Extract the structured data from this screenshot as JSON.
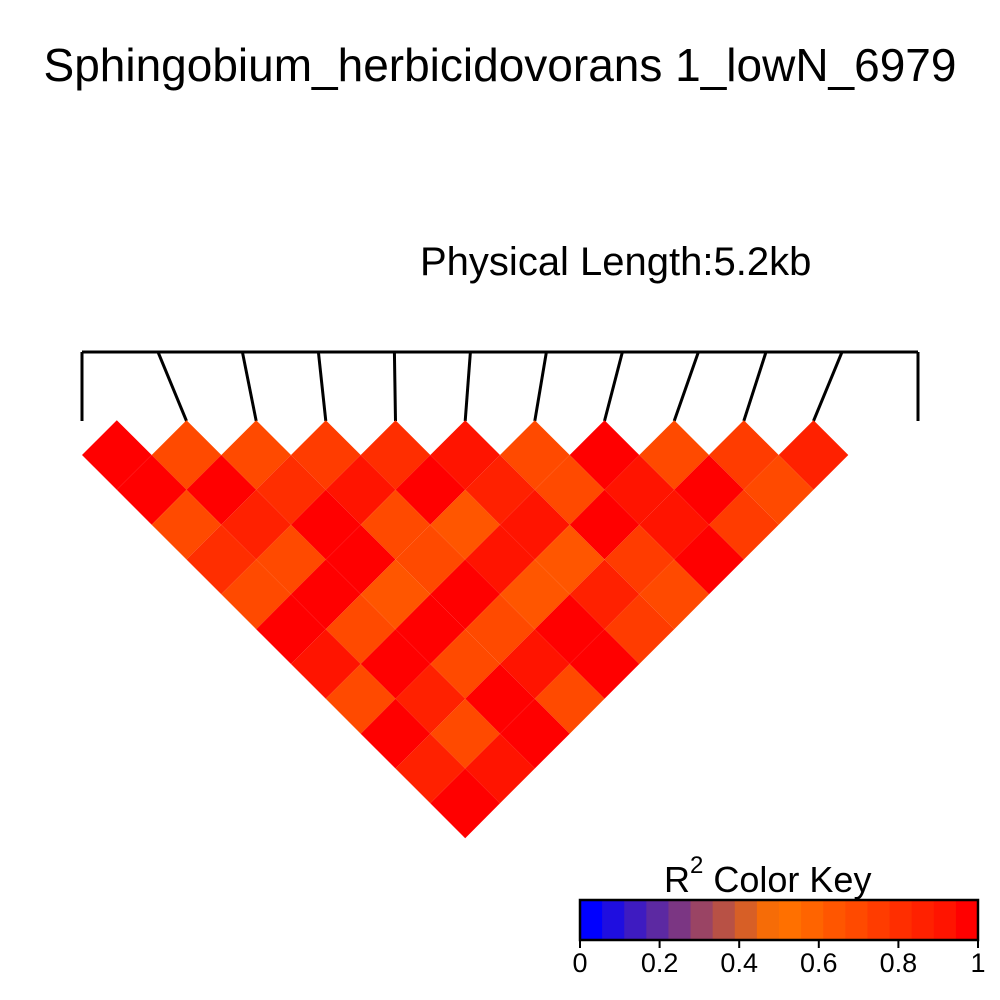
{
  "chart_data": {
    "type": "heatmap",
    "title": "Sphingobium_herbicidovorans 1_lowN_6979",
    "subtitle": "Physical Length:5.2kb",
    "color_key": {
      "title_main": "R",
      "title_sup": "2",
      "title_rest": "Color Key",
      "ticks": [
        "0",
        "0.2",
        "0.4",
        "0.6",
        "0.8",
        "1"
      ],
      "range": [
        0,
        1
      ],
      "colors": [
        "#0000ff",
        "#1f0ee0",
        "#3e1bc1",
        "#5c29a2",
        "#7b3683",
        "#9a4464",
        "#b85145",
        "#d75f26",
        "#f66c07",
        "#ff7000",
        "#ff6400",
        "#ff5600",
        "#ff4a00",
        "#ff3c00",
        "#ff2e00",
        "#ff2100",
        "#ff1400",
        "#ff0000"
      ]
    },
    "n_markers": 12,
    "marker_positions_kb": [
      0.0,
      0.45,
      0.95,
      1.4,
      1.85,
      2.3,
      2.75,
      3.2,
      3.65,
      4.05,
      4.5,
      4.95
    ],
    "r2_rows": [
      [
        1.0,
        0.68,
        0.68,
        0.76,
        0.79,
        0.9,
        0.68,
        0.95,
        0.68,
        0.76,
        0.84
      ],
      [
        0.95,
        0.95,
        0.79,
        0.9,
        0.95,
        0.84,
        0.68,
        0.9,
        0.95,
        0.68
      ],
      [
        0.68,
        0.84,
        0.95,
        0.68,
        0.62,
        0.9,
        0.95,
        0.9,
        0.76
      ],
      [
        0.79,
        0.68,
        0.95,
        0.68,
        0.9,
        0.62,
        0.76,
        0.95
      ],
      [
        0.68,
        0.95,
        0.62,
        0.95,
        0.62,
        0.84,
        0.68
      ],
      [
        0.95,
        0.68,
        0.95,
        0.68,
        0.95,
        0.76
      ],
      [
        0.9,
        0.95,
        0.68,
        0.9,
        0.95
      ],
      [
        0.68,
        0.84,
        0.95,
        0.68
      ],
      [
        0.95,
        0.68,
        0.95
      ],
      [
        0.84,
        0.9
      ],
      [
        0.95
      ]
    ]
  }
}
